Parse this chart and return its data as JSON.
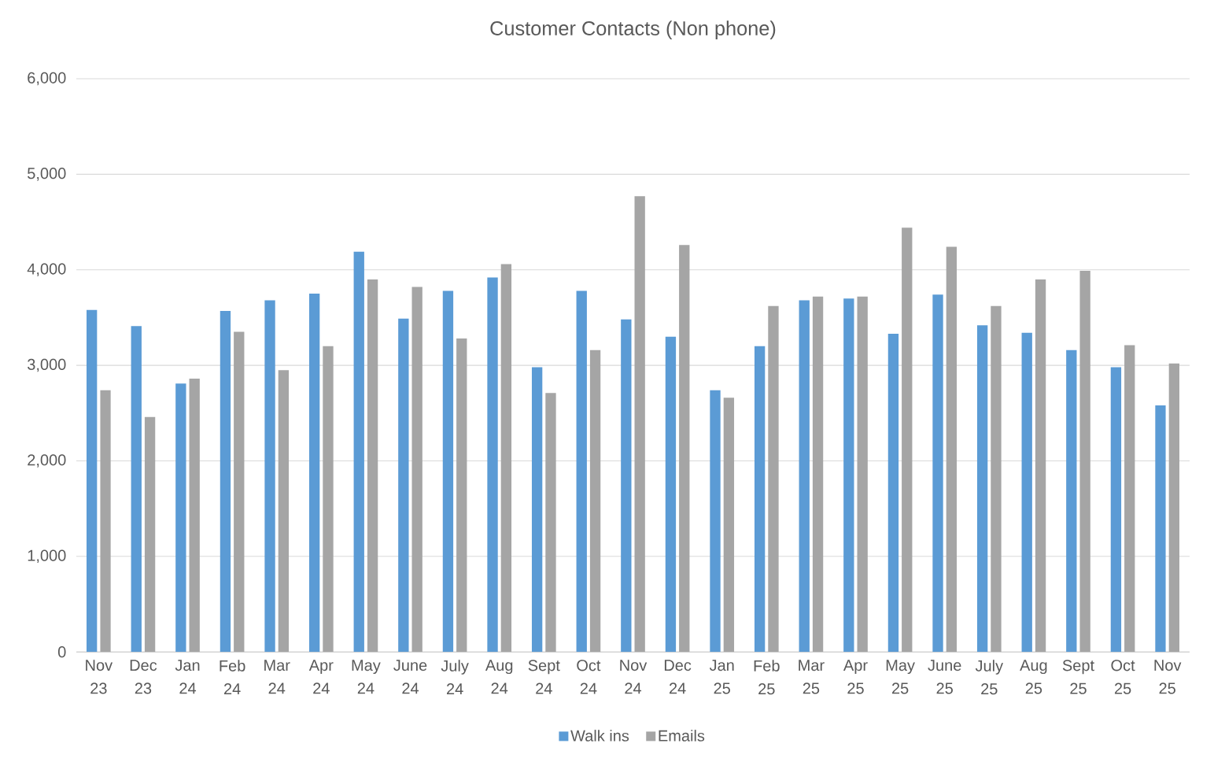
{
  "chart_data": {
    "type": "bar",
    "title": "Customer Contacts (Non phone)",
    "categories": [
      "Nov 23",
      "Dec 23",
      "Jan 24",
      "Feb 24",
      "Mar 24",
      "Apr 24",
      "May 24",
      "June 24",
      "July 24",
      "Aug 24",
      "Sept 24",
      "Oct 24",
      "Nov 24",
      "Dec 24",
      "Jan 25",
      "Feb 25",
      "Mar 25",
      "Apr 25",
      "May 25",
      "June 25",
      "July 25",
      "Aug 25",
      "Sept 25",
      "Oct 25",
      "Nov 25"
    ],
    "series": [
      {
        "name": "Walk ins",
        "color": "#5b9bd5",
        "values": [
          3580,
          3410,
          2810,
          3570,
          3680,
          3750,
          4190,
          3490,
          3780,
          3920,
          2980,
          3780,
          3480,
          3300,
          2740,
          3200,
          3680,
          3700,
          3330,
          3740,
          3420,
          3340,
          3160,
          2980,
          2580
        ]
      },
      {
        "name": "Emails",
        "color": "#a5a5a5",
        "values": [
          2740,
          2460,
          2860,
          3350,
          2950,
          3200,
          3900,
          3820,
          3280,
          4060,
          2710,
          3160,
          4770,
          4260,
          2660,
          3620,
          3720,
          3720,
          4440,
          4240,
          3620,
          3900,
          3990,
          3210,
          3020
        ]
      }
    ],
    "ylim": [
      0,
      6000
    ],
    "yticks": [
      {
        "value": 0,
        "label": "0"
      },
      {
        "value": 1000,
        "label": "1,000"
      },
      {
        "value": 2000,
        "label": "2,000"
      },
      {
        "value": 3000,
        "label": "3,000"
      },
      {
        "value": 4000,
        "label": "4,000"
      },
      {
        "value": 5000,
        "label": "5,000"
      },
      {
        "value": 6000,
        "label": "6,000"
      }
    ],
    "grid": "y",
    "legend": "bottom"
  }
}
